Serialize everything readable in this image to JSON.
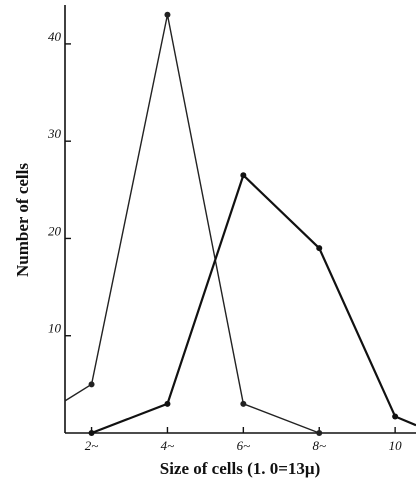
{
  "chart_data": {
    "type": "line",
    "x_label": "Size of cells (1. 0=13μ)",
    "y_label": "Number of cells",
    "xlim": [
      1.3,
      10.55
    ],
    "ylim": [
      0,
      44
    ],
    "xticks": [
      {
        "value": 2,
        "label": "2~"
      },
      {
        "value": 4,
        "label": "4~"
      },
      {
        "value": 6,
        "label": "6~"
      },
      {
        "value": 8,
        "label": "8~"
      },
      10
    ],
    "yticks": [
      10,
      20,
      30,
      40
    ],
    "series": [
      {
        "color": "#222",
        "width": 1.4,
        "x": [
          1.3,
          2,
          4,
          6,
          8
        ],
        "values": [
          3.3,
          5,
          43,
          3,
          0
        ]
      },
      {
        "color": "#111",
        "width": 2.2,
        "x": [
          2,
          4,
          6,
          8,
          10,
          10.55
        ],
        "values": [
          0,
          3,
          26.5,
          19,
          1.7,
          0.8
        ]
      }
    ]
  }
}
